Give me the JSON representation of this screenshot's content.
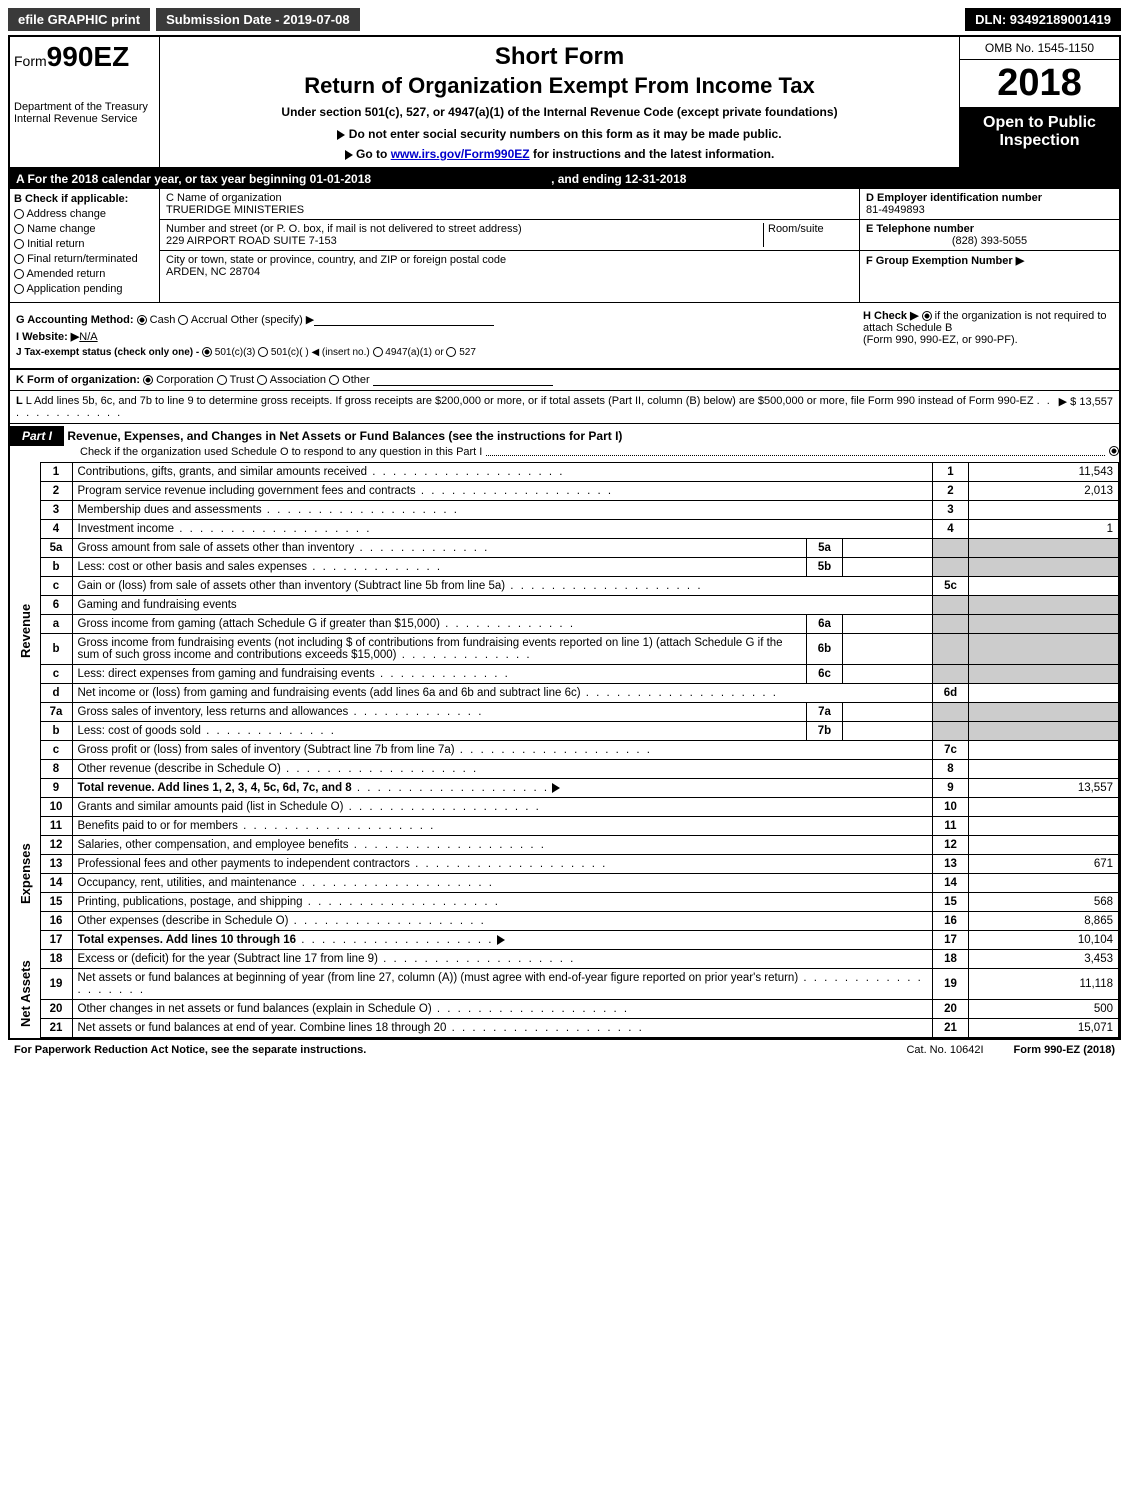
{
  "topbar": {
    "efile": "efile GRAPHIC print",
    "submission": "Submission Date - 2019-07-08",
    "dln": "DLN: 93492189001419"
  },
  "header": {
    "form_prefix": "Form",
    "form_num": "990EZ",
    "dept1": "Department of the Treasury",
    "dept2": "Internal Revenue Service",
    "short_form": "Short Form",
    "return_title": "Return of Organization Exempt From Income Tax",
    "under": "Under section 501(c), 527, or 4947(a)(1) of the Internal Revenue Code (except private foundations)",
    "donot": "Do not enter social security numbers on this form as it may be made public.",
    "goto_pre": "Go to ",
    "goto_link": "www.irs.gov/Form990EZ",
    "goto_post": " for instructions and the latest information.",
    "omb": "OMB No. 1545-1150",
    "year": "2018",
    "open": "Open to Public Inspection"
  },
  "rowA": {
    "text": "A  For the 2018 calendar year, or tax year beginning 01-01-2018",
    "ending": ", and ending 12-31-2018"
  },
  "colB": {
    "label": "B  Check if applicable:",
    "opts": [
      "Address change",
      "Name change",
      "Initial return",
      "Final return/terminated",
      "Amended return",
      "Application pending"
    ]
  },
  "colC": {
    "name_lbl": "C Name of organization",
    "name": "TRUERIDGE MINISTERIES",
    "addr_lbl": "Number and street (or P. O. box, if mail is not delivered to street address)",
    "room_lbl": "Room/suite",
    "addr": "229 AIRPORT ROAD SUITE 7-153",
    "city_lbl": "City or town, state or province, country, and ZIP or foreign postal code",
    "city": "ARDEN, NC  28704"
  },
  "colD": {
    "ein_lbl": "D Employer identification number",
    "ein": "81-4949893",
    "tel_lbl": "E Telephone number",
    "tel": "(828) 393-5055",
    "grp_lbl": "F Group Exemption Number  ▶"
  },
  "rowG": {
    "label": "G Accounting Method:",
    "cash": "Cash",
    "accrual": "Accrual",
    "other": "Other (specify) ▶"
  },
  "rowH": {
    "text1": "H  Check ▶",
    "text2": "if the organization is not required to attach Schedule B",
    "text3": "(Form 990, 990-EZ, or 990-PF)."
  },
  "rowI": {
    "label": "I Website: ▶",
    "val": "N/A"
  },
  "rowJ": {
    "label": "J Tax-exempt status (check only one) -",
    "o1": "501(c)(3)",
    "o2": "501(c)(  ) ◀ (insert no.)",
    "o3": "4947(a)(1) or",
    "o4": "527"
  },
  "rowK": {
    "label": "K Form of organization:",
    "o1": "Corporation",
    "o2": "Trust",
    "o3": "Association",
    "o4": "Other"
  },
  "rowL": {
    "text": "L Add lines 5b, 6c, and 7b to line 9 to determine gross receipts. If gross receipts are $200,000 or more, or if total assets (Part II, column (B) below) are $500,000 or more, file Form 990 instead of Form 990-EZ",
    "val": "▶ $ 13,557"
  },
  "part1": {
    "label": "Part I",
    "title": "Revenue, Expenses, and Changes in Net Assets or Fund Balances (see the instructions for Part I)",
    "check": "Check if the organization used Schedule O to respond to any question in this Part I"
  },
  "sides": {
    "rev": "Revenue",
    "exp": "Expenses",
    "na": "Net Assets"
  },
  "lines": [
    {
      "n": "1",
      "t": "Contributions, gifts, grants, and similar amounts received",
      "ln": "1",
      "v": "11,543"
    },
    {
      "n": "2",
      "t": "Program service revenue including government fees and contracts",
      "ln": "2",
      "v": "2,013"
    },
    {
      "n": "3",
      "t": "Membership dues and assessments",
      "ln": "3",
      "v": ""
    },
    {
      "n": "4",
      "t": "Investment income",
      "ln": "4",
      "v": "1"
    },
    {
      "n": "5a",
      "t": "Gross amount from sale of assets other than inventory",
      "sub": "5a",
      "sv": ""
    },
    {
      "n": "b",
      "t": "Less: cost or other basis and sales expenses",
      "sub": "5b",
      "sv": ""
    },
    {
      "n": "c",
      "t": "Gain or (loss) from sale of assets other than inventory (Subtract line 5b from line 5a)",
      "ln": "5c",
      "v": ""
    },
    {
      "n": "6",
      "t": "Gaming and fundraising events",
      "hdr": true
    },
    {
      "n": "a",
      "t": "Gross income from gaming (attach Schedule G if greater than $15,000)",
      "sub": "6a",
      "sv": ""
    },
    {
      "n": "b",
      "t": "Gross income from fundraising events (not including $                    of contributions from fundraising events reported on line 1) (attach Schedule G if the sum of such gross income and contributions exceeds $15,000)",
      "sub": "6b",
      "sv": ""
    },
    {
      "n": "c",
      "t": "Less: direct expenses from gaming and fundraising events",
      "sub": "6c",
      "sv": ""
    },
    {
      "n": "d",
      "t": "Net income or (loss) from gaming and fundraising events (add lines 6a and 6b and subtract line 6c)",
      "ln": "6d",
      "v": ""
    },
    {
      "n": "7a",
      "t": "Gross sales of inventory, less returns and allowances",
      "sub": "7a",
      "sv": ""
    },
    {
      "n": "b",
      "t": "Less: cost of goods sold",
      "sub": "7b",
      "sv": ""
    },
    {
      "n": "c",
      "t": "Gross profit or (loss) from sales of inventory (Subtract line 7b from line 7a)",
      "ln": "7c",
      "v": ""
    },
    {
      "n": "8",
      "t": "Other revenue (describe in Schedule O)",
      "ln": "8",
      "v": ""
    },
    {
      "n": "9",
      "t": "Total revenue. Add lines 1, 2, 3, 4, 5c, 6d, 7c, and 8",
      "ln": "9",
      "v": "13,557",
      "bold": true,
      "arrow": true
    },
    {
      "n": "10",
      "t": "Grants and similar amounts paid (list in Schedule O)",
      "ln": "10",
      "v": ""
    },
    {
      "n": "11",
      "t": "Benefits paid to or for members",
      "ln": "11",
      "v": ""
    },
    {
      "n": "12",
      "t": "Salaries, other compensation, and employee benefits",
      "ln": "12",
      "v": ""
    },
    {
      "n": "13",
      "t": "Professional fees and other payments to independent contractors",
      "ln": "13",
      "v": "671"
    },
    {
      "n": "14",
      "t": "Occupancy, rent, utilities, and maintenance",
      "ln": "14",
      "v": ""
    },
    {
      "n": "15",
      "t": "Printing, publications, postage, and shipping",
      "ln": "15",
      "v": "568"
    },
    {
      "n": "16",
      "t": "Other expenses (describe in Schedule O)",
      "ln": "16",
      "v": "8,865"
    },
    {
      "n": "17",
      "t": "Total expenses. Add lines 10 through 16",
      "ln": "17",
      "v": "10,104",
      "bold": true,
      "arrow": true
    },
    {
      "n": "18",
      "t": "Excess or (deficit) for the year (Subtract line 17 from line 9)",
      "ln": "18",
      "v": "3,453"
    },
    {
      "n": "19",
      "t": "Net assets or fund balances at beginning of year (from line 27, column (A)) (must agree with end-of-year figure reported on prior year's return)",
      "ln": "19",
      "v": "11,118"
    },
    {
      "n": "20",
      "t": "Other changes in net assets or fund balances (explain in Schedule O)",
      "ln": "20",
      "v": "500"
    },
    {
      "n": "21",
      "t": "Net assets or fund balances at end of year. Combine lines 18 through 20",
      "ln": "21",
      "v": "15,071"
    }
  ],
  "footer": {
    "left": "For Paperwork Reduction Act Notice, see the separate instructions.",
    "cat": "Cat. No. 10642I",
    "form": "Form 990-EZ (2018)"
  },
  "colors": {
    "black": "#000000",
    "shade": "#cccccc",
    "link": "#0000cc"
  }
}
